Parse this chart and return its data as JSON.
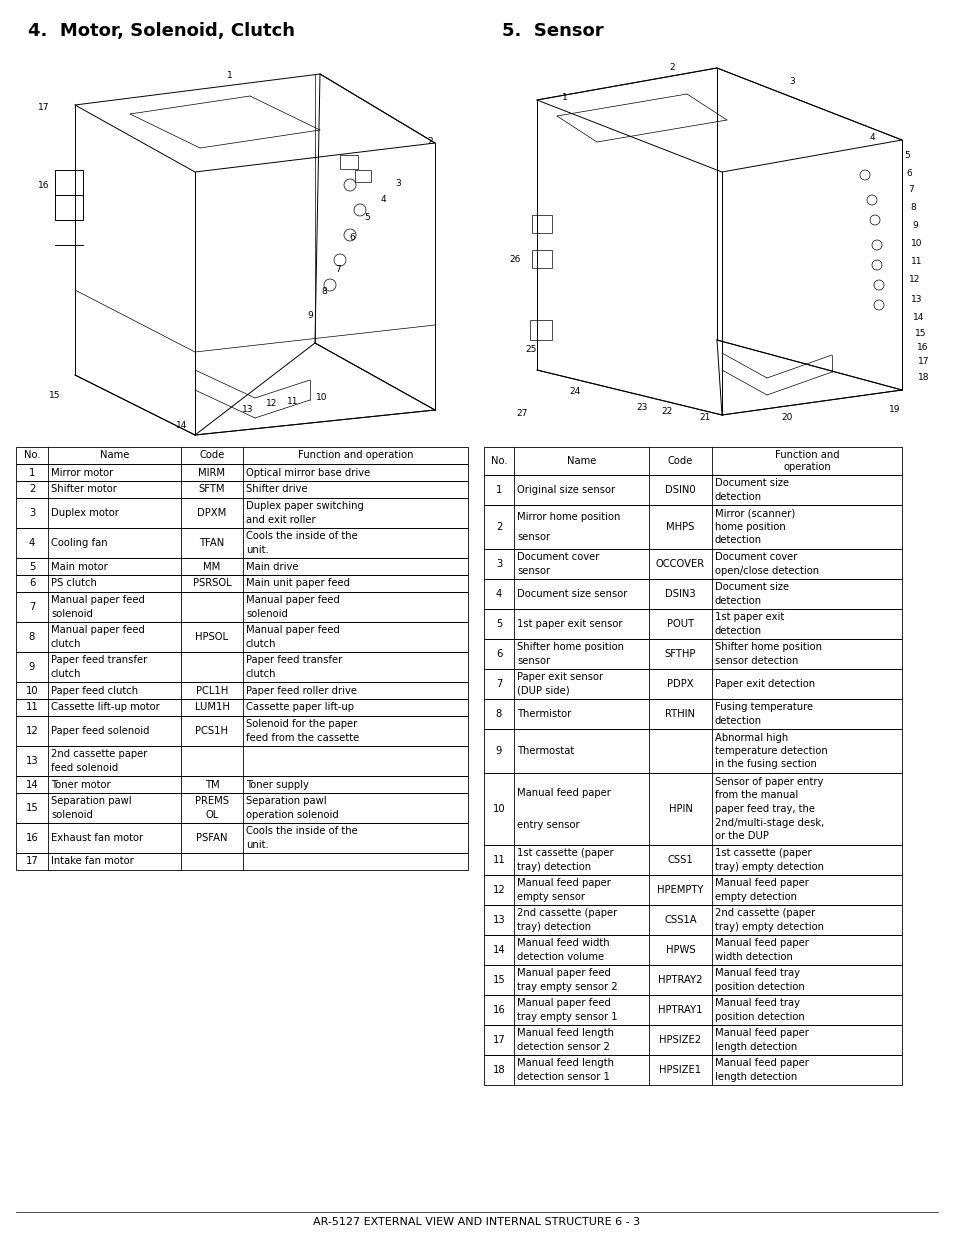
{
  "title_left": "4.  Motor, Solenoid, Clutch",
  "title_right": "5.  Sensor",
  "footer": "AR-5127 EXTERNAL VIEW AND INTERNAL STRUCTURE 6 - 3",
  "table_left_headers": [
    "No.",
    "Name",
    "Code",
    "Function and operation"
  ],
  "table_left": [
    [
      "1",
      "Mirror motor",
      "MIRM",
      "Optical mirror base drive"
    ],
    [
      "2",
      "Shifter motor",
      "SFTM",
      "Shifter drive"
    ],
    [
      "3",
      "Duplex motor",
      "DPXM",
      "Duplex paper switching\nand exit roller"
    ],
    [
      "4",
      "Cooling fan",
      "TFAN",
      "Cools the inside of the\nunit."
    ],
    [
      "5",
      "Main motor",
      "MM",
      "Main drive"
    ],
    [
      "6",
      "PS clutch",
      "PSRSOL",
      "Main unit paper feed"
    ],
    [
      "7",
      "Manual paper feed\nsolenoid",
      "",
      "Manual paper feed\nsolenoid"
    ],
    [
      "8",
      "Manual paper feed\nclutch",
      "HPSOL",
      "Manual paper feed\nclutch"
    ],
    [
      "9",
      "Paper feed transfer\nclutch",
      "",
      "Paper feed transfer\nclutch"
    ],
    [
      "10",
      "Paper feed clutch",
      "PCL1H",
      "Paper feed roller drive"
    ],
    [
      "11",
      "Cassette lift-up motor",
      "LUM1H",
      "Cassette paper lift-up"
    ],
    [
      "12",
      "Paper feed solenoid",
      "PCS1H",
      "Solenoid for the paper\nfeed from the cassette"
    ],
    [
      "13",
      "2nd cassette paper\nfeed solenoid",
      "",
      ""
    ],
    [
      "14",
      "Toner motor",
      "TM",
      "Toner supply"
    ],
    [
      "15",
      "Separation pawl\nsolenoid",
      "PREMS\nOL",
      "Separation pawl\noperation solenoid"
    ],
    [
      "16",
      "Exhaust fan motor",
      "PSFAN",
      "Cools the inside of the\nunit."
    ],
    [
      "17",
      "Intake fan motor",
      "",
      ""
    ]
  ],
  "table_right_headers": [
    "No.",
    "Name",
    "Code",
    "Function and\noperation"
  ],
  "table_right": [
    [
      "1",
      "Original size sensor",
      "DSIN0",
      "Document size\ndetection"
    ],
    [
      "2",
      "Mirror home position\nsensor",
      "MHPS",
      "Mirror (scanner)\nhome position\ndetection"
    ],
    [
      "3",
      "Document cover\nsensor",
      "OCCOVER",
      "Document cover\nopen/close detection"
    ],
    [
      "4",
      "Document size sensor",
      "DSIN3",
      "Document size\ndetection"
    ],
    [
      "5",
      "1st paper exit sensor",
      "POUT",
      "1st paper exit\ndetection"
    ],
    [
      "6",
      "Shifter home position\nsensor",
      "SFTHP",
      "Shifter home position\nsensor detection"
    ],
    [
      "7",
      "Paper exit sensor\n(DUP side)",
      "PDPX",
      "Paper exit detection"
    ],
    [
      "8",
      "Thermistor",
      "RTHIN",
      "Fusing temperature\ndetection"
    ],
    [
      "9",
      "Thermostat",
      "",
      "Abnormal high\ntemperature detection\nin the fusing section"
    ],
    [
      "10",
      "Manual feed paper\nentry sensor",
      "HPIN",
      "Sensor of paper entry\nfrom the manual\npaper feed tray, the\n2nd/multi-stage desk,\nor the DUP"
    ],
    [
      "11",
      "1st cassette (paper\ntray) detection",
      "CSS1",
      "1st cassette (paper\ntray) empty detection"
    ],
    [
      "12",
      "Manual feed paper\nempty sensor",
      "HPEMPTY",
      "Manual feed paper\nempty detection"
    ],
    [
      "13",
      "2nd cassette (paper\ntray) detection",
      "CSS1A",
      "2nd cassette (paper\ntray) empty detection"
    ],
    [
      "14",
      "Manual feed width\ndetection volume",
      "HPWS",
      "Manual feed paper\nwidth detection"
    ],
    [
      "15",
      "Manual paper feed\ntray empty sensor 2",
      "HPTRAY2",
      "Manual feed tray\nposition detection"
    ],
    [
      "16",
      "Manual paper feed\ntray empty sensor 1",
      "HPTRAY1",
      "Manual feed tray\nposition detection"
    ],
    [
      "17",
      "Manual feed length\ndetection sensor 2",
      "HPSIZE2",
      "Manual feed paper\nlength detection"
    ],
    [
      "18",
      "Manual feed length\ndetection sensor 1",
      "HPSIZE1",
      "Manual feed paper\nlength detection"
    ]
  ],
  "bg_color": "#ffffff",
  "text_color": "#000000"
}
